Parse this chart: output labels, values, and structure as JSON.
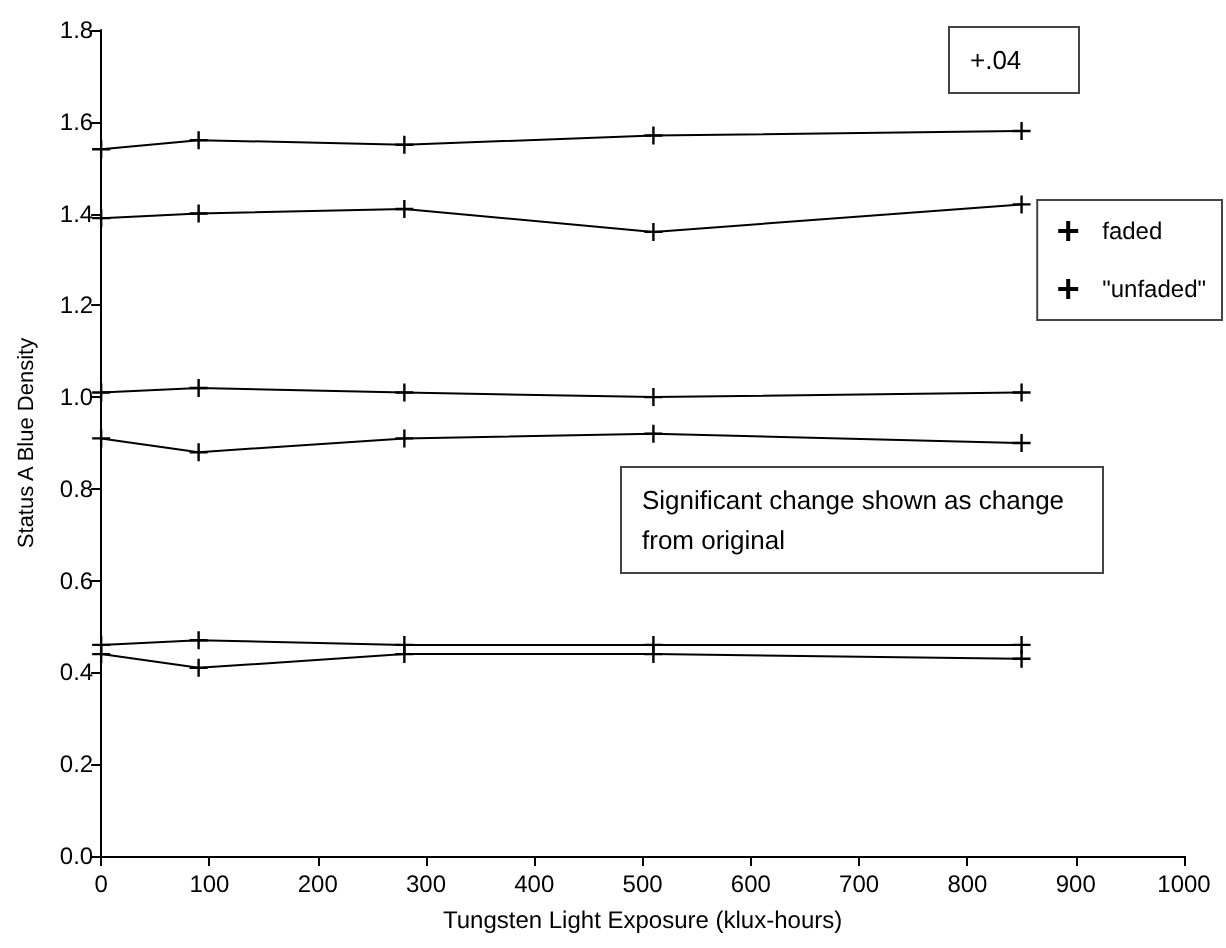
{
  "chart_data": {
    "type": "line",
    "xlabel": "Tungsten Light Exposure (klux-hours)",
    "ylabel": "Status A Blue Density",
    "x": [
      0,
      90,
      280,
      510,
      850
    ],
    "series": [
      {
        "name": "faded",
        "color": "#000000",
        "values": [
          1.39,
          1.4,
          1.41,
          1.36,
          1.42
        ]
      },
      {
        "name": "\"unfaded\"",
        "color": "#000000",
        "values": [
          1.54,
          1.56,
          1.55,
          1.57,
          1.58
        ]
      },
      {
        "color": "#000000",
        "values": [
          1.01,
          1.02,
          1.01,
          1.0,
          1.01
        ]
      },
      {
        "color": "#000000",
        "values": [
          0.91,
          0.88,
          0.91,
          0.92,
          0.9
        ]
      },
      {
        "color": "#000000",
        "values": [
          0.46,
          0.47,
          0.46,
          0.46,
          0.46
        ]
      },
      {
        "color": "#000000",
        "values": [
          0.44,
          0.41,
          0.44,
          0.44,
          0.43
        ]
      }
    ],
    "xlim": [
      0,
      1000
    ],
    "xticks": [
      0,
      100,
      200,
      300,
      400,
      500,
      600,
      700,
      800,
      900,
      1000
    ],
    "ylim": [
      0,
      1.8
    ],
    "yticks": [
      {
        "value": 0,
        "label": "0.0"
      },
      {
        "value": 0.2,
        "label": "0.2"
      },
      {
        "value": 0.4,
        "label": "0.4"
      },
      {
        "value": 0.6,
        "label": "0.6"
      },
      {
        "value": 0.8,
        "label": "0.8"
      },
      {
        "value": 1,
        "label": "1.0"
      },
      {
        "value": 1.2,
        "label": "1.2"
      },
      {
        "value": 1.4,
        "label": "1.4"
      },
      {
        "value": 1.6,
        "label": "1.6"
      },
      {
        "value": 1.8,
        "label": "1.8"
      }
    ],
    "annotations": [
      "+.04",
      "Significant change shown as change from original"
    ],
    "marker": "cross",
    "line_style": "solid",
    "grid": false,
    "legend": "right"
  }
}
